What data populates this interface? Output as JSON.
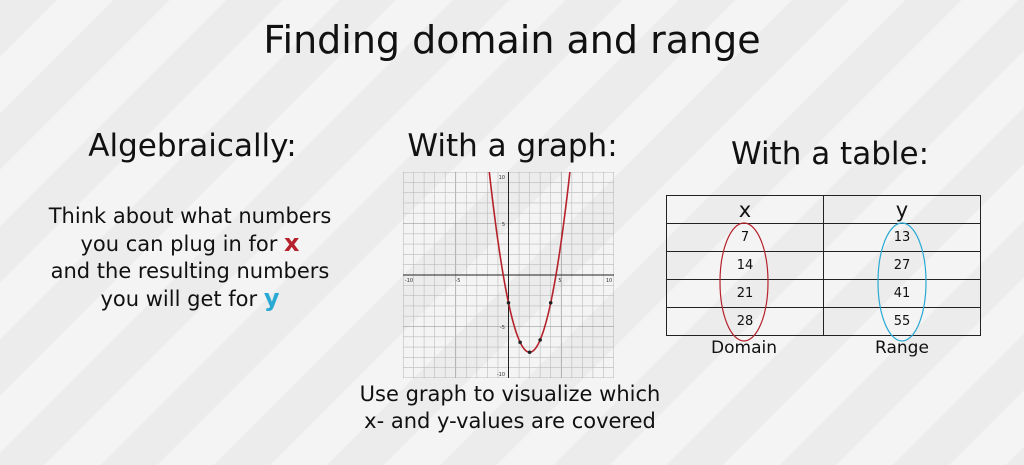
{
  "title": "Finding domain and range",
  "algebraic": {
    "heading": "Algebraically:",
    "line1": "Think about what numbers",
    "line2_prefix": "you can plug in for ",
    "x_symbol": "x",
    "line3": "and the resulting numbers",
    "line4_prefix": "you will get for ",
    "y_symbol": "y",
    "x_color": "#b5222c",
    "y_color": "#29a9d4"
  },
  "graph": {
    "heading": "With a graph:",
    "caption_line1": "Use graph to visualize which",
    "caption_line2": "x- and y-values are covered",
    "curve_color": "#b5222c",
    "xlim": [
      -10,
      10
    ],
    "ylim": [
      -10,
      10
    ],
    "tick_labels": {
      "x_neg10": "-10",
      "x_neg5": "-5",
      "x_5": "5",
      "x_10": "10",
      "y_10": "10",
      "y_5": "5",
      "y_neg5": "-5",
      "y_neg10": "-10"
    }
  },
  "table": {
    "heading": "With a table:",
    "col_x": "x",
    "col_y": "y",
    "rows": [
      {
        "x": "7",
        "y": "13"
      },
      {
        "x": "14",
        "y": "27"
      },
      {
        "x": "21",
        "y": "41"
      },
      {
        "x": "28",
        "y": "55"
      }
    ],
    "domain_label": "Domain",
    "range_label": "Range",
    "domain_oval_color": "#b5222c",
    "range_oval_color": "#29a9d4"
  }
}
